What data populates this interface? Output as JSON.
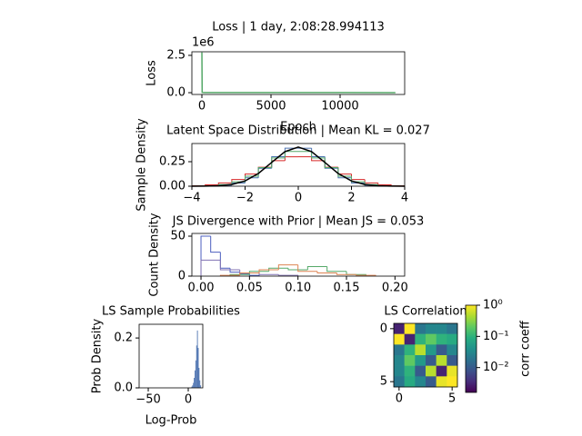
{
  "chart_data": [
    {
      "type": "line",
      "title": "Loss | 1 day, 2:08:28.994113",
      "xlabel": "Epoch",
      "ylabel": "Loss",
      "offset_text": "1e6",
      "x": [
        0,
        20,
        200,
        14000
      ],
      "series": [
        {
          "color": "#55a868",
          "values": [
            2.7,
            0.02,
            0.01,
            0.005
          ]
        }
      ],
      "xlim": [
        -724,
        14670
      ],
      "xticks": [
        0,
        5000,
        10000
      ],
      "ylim": [
        -0.12,
        2.74
      ],
      "yticks": [
        {
          "value": 0,
          "label": "0.0"
        },
        2.5
      ]
    },
    {
      "type": "histogram",
      "title": "Latent Space Distribution | Mean KL = 0.027",
      "ylabel": "Sample Density",
      "series": [
        {
          "color": "#d62728",
          "bins": [
            -4,
            -3.5,
            -3,
            -2.5,
            -2,
            -1.5,
            -1,
            -0.5,
            0,
            0.5,
            1,
            1.5,
            2,
            2.5,
            3,
            3.5,
            4
          ],
          "values": [
            0.005,
            0.014,
            0.033,
            0.068,
            0.124,
            0.193,
            0.26,
            0.3,
            0.3,
            0.26,
            0.193,
            0.124,
            0.068,
            0.033,
            0.014,
            0.005
          ]
        },
        {
          "color": "#4c72b0",
          "bins": [
            -4,
            -3.5,
            -3,
            -2.5,
            -2,
            -1.5,
            -1,
            -0.5,
            0,
            0.5,
            1,
            1.5,
            2,
            2.5,
            3,
            3.5,
            4
          ],
          "values": [
            0.0004,
            0.002,
            0.009,
            0.032,
            0.086,
            0.183,
            0.301,
            0.387,
            0.387,
            0.301,
            0.183,
            0.086,
            0.032,
            0.009,
            0.002,
            0.0004
          ]
        },
        {
          "color": "#55a868",
          "bins": [
            -4,
            -3.5,
            -3,
            -2.5,
            -2,
            -1.5,
            -1,
            -0.5,
            0,
            0.5,
            1,
            1.5,
            2,
            2.5,
            3,
            3.5,
            4
          ],
          "values": [
            0.001,
            0.005,
            0.016,
            0.045,
            0.102,
            0.19,
            0.288,
            0.354,
            0.354,
            0.288,
            0.19,
            0.102,
            0.045,
            0.016,
            0.005,
            0.001
          ]
        }
      ],
      "curve": {
        "color": "#000000",
        "x": [
          -4,
          -3.5,
          -3,
          -2.5,
          -2,
          -1.5,
          -1,
          -0.5,
          0,
          0.5,
          1,
          1.5,
          2,
          2.5,
          3,
          3.5,
          4
        ],
        "y": [
          0.0001,
          0.0009,
          0.0044,
          0.0175,
          0.054,
          0.1295,
          0.242,
          0.352,
          0.399,
          0.352,
          0.242,
          0.1295,
          0.054,
          0.0175,
          0.0044,
          0.0009,
          0.0001
        ]
      },
      "xlim": [
        -4,
        4
      ],
      "xticks": [
        {
          "value": -4,
          "label": "−4"
        },
        {
          "value": -2,
          "label": "−2"
        },
        0,
        2,
        4
      ],
      "ylim": [
        0,
        0.435
      ],
      "yticks": [
        {
          "value": 0,
          "label": "0.00"
        },
        0.25
      ]
    },
    {
      "type": "histogram",
      "title": "JS Divergence with Prior | Mean JS = 0.053",
      "ylabel": "Count Density",
      "series": [
        {
          "color": "#4c5fbf",
          "bins": [
            0,
            0.01,
            0.02,
            0.03,
            0.04,
            0.05,
            0.06
          ],
          "values": [
            50,
            30,
            10,
            5,
            3,
            1
          ]
        },
        {
          "color": "#8172b2",
          "bins": [
            0,
            0.02,
            0.04,
            0.06,
            0.08,
            0.1
          ],
          "values": [
            20,
            8,
            4,
            2,
            1
          ]
        },
        {
          "color": "#55a868",
          "bins": [
            0.03,
            0.05,
            0.07,
            0.09,
            0.11,
            0.13,
            0.15,
            0.17
          ],
          "values": [
            2,
            6,
            10,
            8,
            12,
            6,
            2
          ]
        },
        {
          "color": "#dd8452",
          "bins": [
            0.02,
            0.04,
            0.06,
            0.08,
            0.1,
            0.12,
            0.14,
            0.16,
            0.18
          ],
          "values": [
            1,
            4,
            8,
            14,
            6,
            4,
            2,
            1
          ]
        }
      ],
      "xlim": [
        -0.0094,
        0.21
      ],
      "xticks": [
        {
          "value": 0,
          "label": "0.00"
        },
        0.05,
        {
          "value": 0.1,
          "label": "0.10"
        },
        0.15,
        {
          "value": 0.2,
          "label": "0.20"
        }
      ],
      "ylim": [
        0,
        53.4
      ],
      "yticks": [
        0,
        50
      ]
    },
    {
      "type": "histogram",
      "filled": true,
      "title": "LS Sample Probabilities",
      "xlabel": "Log-Prob",
      "ylabel": "Prob Density",
      "series": [
        {
          "color": "#4c72b0",
          "bins": [
            4,
            5,
            6,
            7,
            8,
            9,
            10,
            11,
            12,
            13,
            14,
            15,
            16
          ],
          "values": [
            0.005,
            0.01,
            0.02,
            0.04,
            0.07,
            0.11,
            0.17,
            0.23,
            0.16,
            0.08,
            0.03,
            0.01
          ]
        }
      ],
      "xlim": [
        -61.4,
        18.2
      ],
      "xticks": [
        {
          "value": -50,
          "label": "−50"
        },
        0
      ],
      "ylim": [
        0,
        0.255
      ],
      "yticks": [
        {
          "value": 0,
          "label": "0.0"
        },
        0.2
      ]
    },
    {
      "type": "heatmap",
      "title": "LS Correlation",
      "colorbar_label": "corr coeff",
      "colormap": "viridis",
      "log_scale": true,
      "matrix": [
        [
          0.003,
          1,
          0.02,
          0.03,
          0.03,
          0.02
        ],
        [
          1,
          0.003,
          0.1,
          0.2,
          0.1,
          0.08
        ],
        [
          0.02,
          0.1,
          0.5,
          0.05,
          0.01,
          0.03
        ],
        [
          0.03,
          0.2,
          0.05,
          0.01,
          0.5,
          0.01
        ],
        [
          0.03,
          0.1,
          0.01,
          0.5,
          0.003,
          0.8
        ],
        [
          0.02,
          0.08,
          0.03,
          0.01,
          0.8,
          1
        ]
      ],
      "xticks": [
        0,
        5
      ],
      "yticks": [
        0,
        5
      ],
      "clim": [
        0.0016,
        1
      ],
      "cticks": [
        {
          "value": 1,
          "label": "10⁰"
        },
        {
          "value": 0.1,
          "label": "10⁻¹"
        },
        {
          "value": 0.01,
          "label": "10⁻²"
        }
      ]
    }
  ]
}
